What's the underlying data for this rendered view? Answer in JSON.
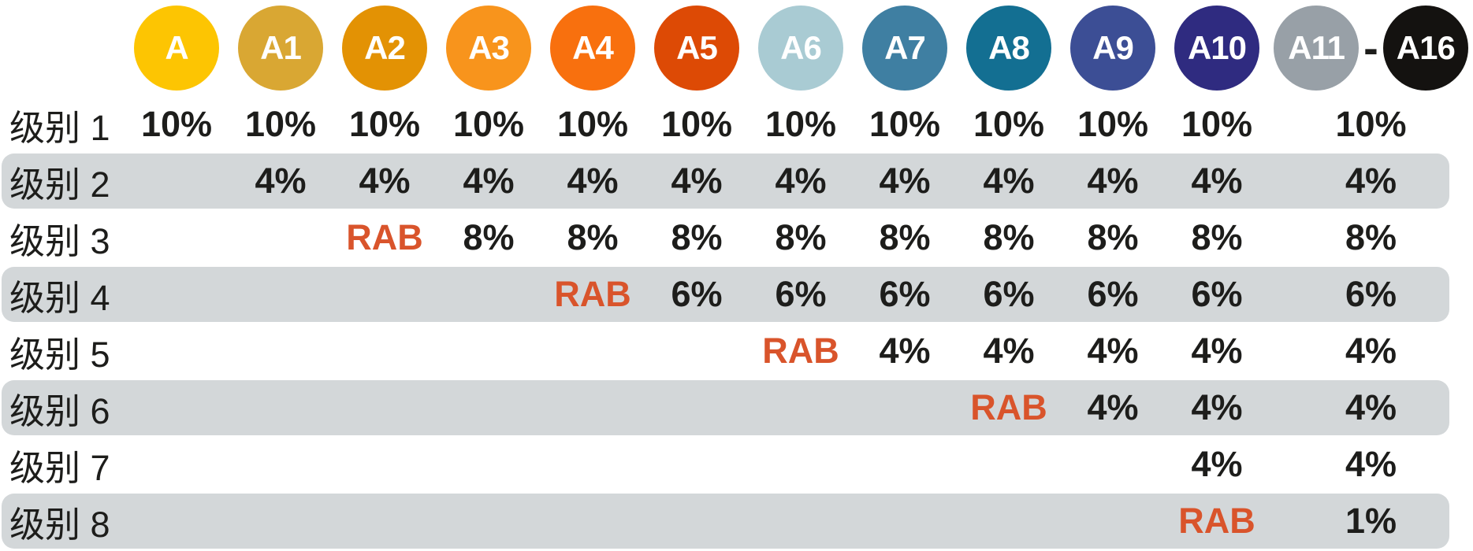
{
  "header": {
    "circles": [
      {
        "label": "A",
        "color": "#FDC502"
      },
      {
        "label": "A1",
        "color": "#D9A733"
      },
      {
        "label": "A2",
        "color": "#E39204"
      },
      {
        "label": "A3",
        "color": "#F8941C"
      },
      {
        "label": "A4",
        "color": "#F8700E"
      },
      {
        "label": "A5",
        "color": "#DD4A05"
      },
      {
        "label": "A6",
        "color": "#A9CBD3"
      },
      {
        "label": "A7",
        "color": "#3F7FA2"
      },
      {
        "label": "A8",
        "color": "#136F92"
      },
      {
        "label": "A9",
        "color": "#3C4E95"
      },
      {
        "label": "A10",
        "color": "#2F2B80"
      },
      {
        "label": "A11",
        "color": "#98A0A7"
      },
      {
        "label": "A16",
        "color": "#141210"
      }
    ],
    "range_separator": "-"
  },
  "chart_data": {
    "type": "table",
    "columns": [
      "A",
      "A1",
      "A2",
      "A3",
      "A4",
      "A5",
      "A6",
      "A7",
      "A8",
      "A9",
      "A10",
      "A11-A16"
    ],
    "rows": [
      {
        "label": "级别 1",
        "shaded": false,
        "cells": [
          "10%",
          "10%",
          "10%",
          "10%",
          "10%",
          "10%",
          "10%",
          "10%",
          "10%",
          "10%",
          "10%",
          "10%"
        ]
      },
      {
        "label": "级别 2",
        "shaded": true,
        "cells": [
          "",
          "4%",
          "4%",
          "4%",
          "4%",
          "4%",
          "4%",
          "4%",
          "4%",
          "4%",
          "4%",
          "4%"
        ]
      },
      {
        "label": "级别 3",
        "shaded": false,
        "cells": [
          "",
          "",
          "RAB",
          "8%",
          "8%",
          "8%",
          "8%",
          "8%",
          "8%",
          "8%",
          "8%",
          "8%"
        ]
      },
      {
        "label": "级别 4",
        "shaded": true,
        "cells": [
          "",
          "",
          "",
          "",
          "RAB",
          "6%",
          "6%",
          "6%",
          "6%",
          "6%",
          "6%",
          "6%"
        ]
      },
      {
        "label": "级别 5",
        "shaded": false,
        "cells": [
          "",
          "",
          "",
          "",
          "",
          "",
          "RAB",
          "4%",
          "4%",
          "4%",
          "4%",
          "4%"
        ]
      },
      {
        "label": "级别 6",
        "shaded": true,
        "cells": [
          "",
          "",
          "",
          "",
          "",
          "",
          "",
          "",
          "RAB",
          "4%",
          "4%",
          "4%"
        ]
      },
      {
        "label": "级别 7",
        "shaded": false,
        "cells": [
          "",
          "",
          "",
          "",
          "",
          "",
          "",
          "",
          "",
          "",
          "4%",
          "4%"
        ]
      },
      {
        "label": "级别 8",
        "shaded": true,
        "cells": [
          "",
          "",
          "",
          "",
          "",
          "",
          "",
          "",
          "",
          "",
          "RAB",
          "1%"
        ]
      }
    ]
  },
  "colors": {
    "background": "#FFFFFF",
    "row_shade": "#D3D7D9",
    "rab": "#D9542B",
    "text": "#1D1D1B",
    "circle_text": "#FFFFFF"
  }
}
